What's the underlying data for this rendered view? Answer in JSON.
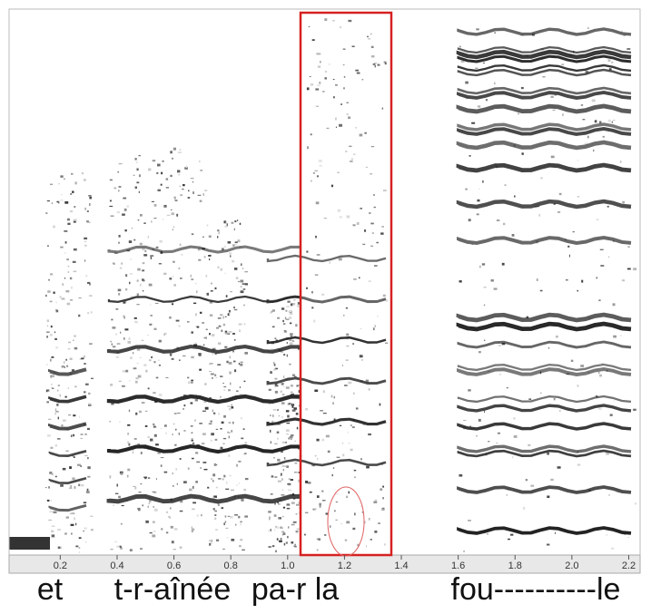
{
  "chart_data": {
    "type": "spectrogram",
    "xlim": [
      0.02,
      2.24
    ],
    "xticks": [
      {
        "value": 0.2,
        "label": "0.2"
      },
      {
        "value": 0.4,
        "label": "0.4"
      },
      {
        "value": 0.6,
        "label": "0.6"
      },
      {
        "value": 0.8,
        "label": "0.8"
      },
      {
        "value": 1.0,
        "label": "1.0"
      },
      {
        "value": 1.2,
        "label": "1.2"
      },
      {
        "value": 1.4,
        "label": "1.4"
      },
      {
        "value": 1.6,
        "label": "1.6"
      },
      {
        "value": 1.8,
        "label": "1.8"
      },
      {
        "value": 2.0,
        "label": "2.0"
      },
      {
        "value": 2.2,
        "label": "2.2"
      }
    ],
    "annotations": [
      "et",
      "t-r-aînée",
      "pa-r la",
      "fou----------le"
    ]
  }
}
